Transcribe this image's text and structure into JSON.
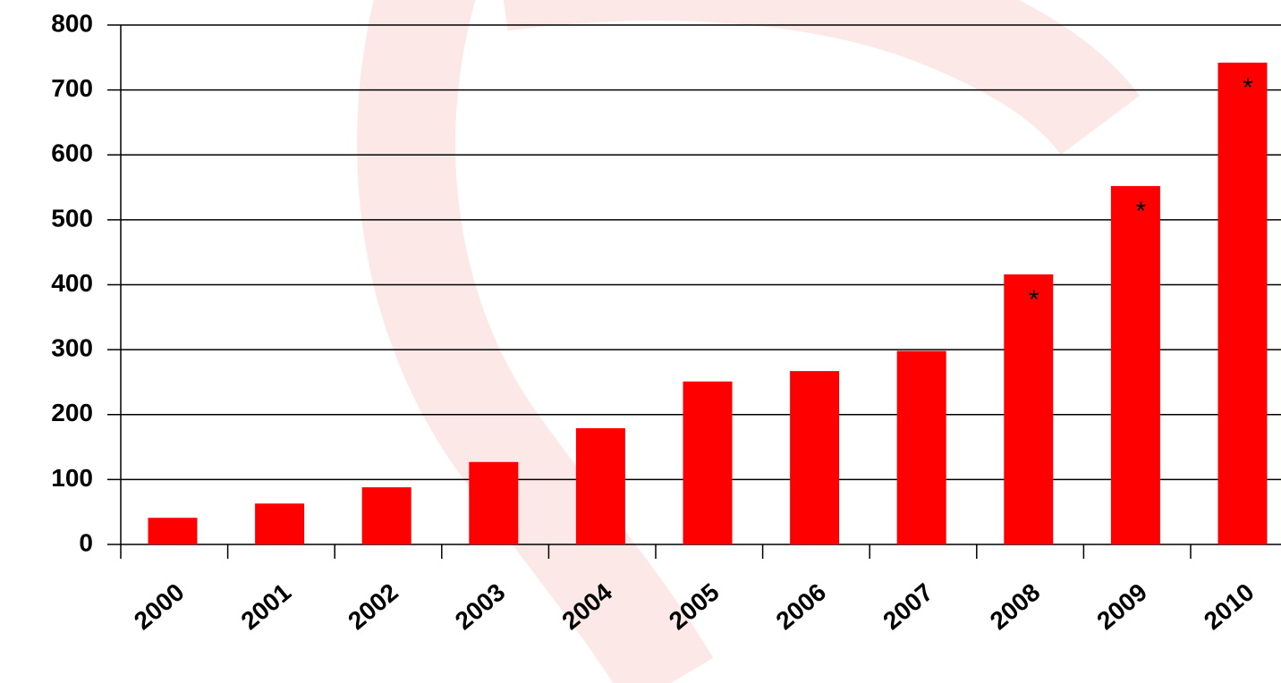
{
  "chart_data": {
    "type": "bar",
    "categories": [
      "2000",
      "2001",
      "2002",
      "2003",
      "2004",
      "2005",
      "2006",
      "2007",
      "2008",
      "2009",
      "2010"
    ],
    "values": [
      41,
      63,
      88,
      127,
      179,
      251,
      267,
      298,
      416,
      552,
      742
    ],
    "color": "#ff0000",
    "ylim": [
      0,
      800
    ],
    "yticks": [
      0,
      100,
      200,
      300,
      400,
      500,
      600,
      700,
      800
    ],
    "grid": true,
    "annotations": [
      {
        "text": "*",
        "category": "2008"
      },
      {
        "text": "*",
        "category": "2009"
      },
      {
        "text": "*",
        "category": "2010"
      }
    ]
  }
}
